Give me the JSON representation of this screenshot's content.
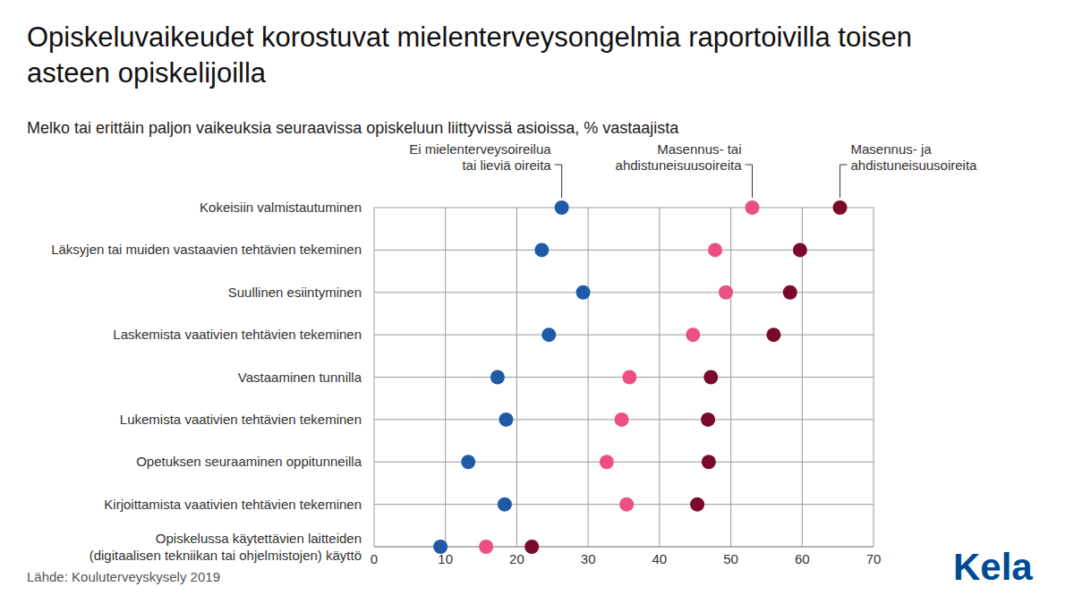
{
  "chart_data": {
    "type": "scatter",
    "orientation": "horizontal",
    "title": "Opiskeluvaikeudet korostuvat mielenterveysongelmia raportoivilla toisen asteen opiskelijoilla",
    "subtitle": "Melko tai erittäin paljon vaikeuksia seuraavissa opiskeluun liittyvissä asioissa, % vastaajista",
    "source": "Lähde: Kouluterveyskysely 2019",
    "logo": "Kela",
    "categories": [
      "Kokeisiin valmistautuminen",
      "Läksyjen tai muiden vastaavien tehtävien tekeminen",
      "Suullinen esiintyminen",
      "Laskemista vaativien tehtävien tekeminen",
      "Vastaaminen tunnilla",
      "Lukemista vaativien tehtävien tekeminen",
      "Opetuksen seuraaminen oppitunneilla",
      "Kirjoittamista vaativien tehtävien tekeminen",
      "Opiskelussa käytettävien laitteiden\n(digitaalisen tekniikan tai ohjelmistojen) käyttö"
    ],
    "series": [
      {
        "name": "Ei mielenterveysoireilua\ntai lieviä oireita",
        "color": "#1f5aa6",
        "values": [
          26.3,
          23.5,
          29.3,
          24.5,
          17.3,
          18.5,
          13.2,
          18.3,
          9.3
        ]
      },
      {
        "name": "Masennus- tai\nahdistuneisuusoireita",
        "color": "#ec4f86",
        "values": [
          53,
          47.8,
          49.3,
          44.7,
          35.8,
          34.7,
          32.6,
          35.4,
          15.7
        ]
      },
      {
        "name": "Masennus- ja\nahdistuneisuusoireita",
        "color": "#7a0a2a",
        "values": [
          65.3,
          59.7,
          58.3,
          56,
          47.2,
          46.8,
          46.9,
          45.3,
          22.1
        ]
      }
    ],
    "xlim": [
      0,
      70
    ],
    "xticks": [
      0,
      10,
      20,
      30,
      40,
      50,
      60,
      70
    ],
    "grid": true,
    "marker": "circle"
  }
}
